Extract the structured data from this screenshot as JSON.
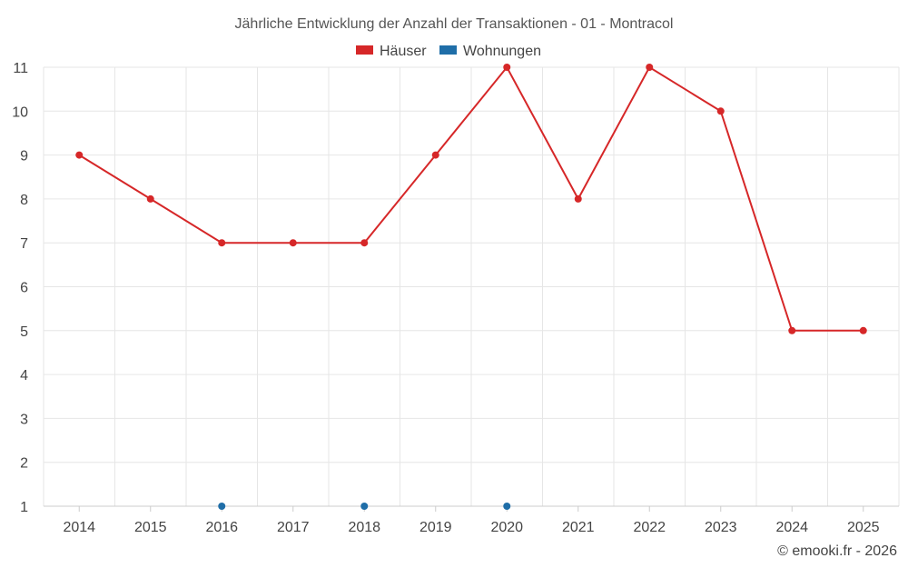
{
  "chart_data": {
    "type": "line",
    "title": "Jährliche Entwicklung der Anzahl der Transaktionen - 01 - Montracol",
    "x": [
      "2014",
      "2015",
      "2016",
      "2017",
      "2018",
      "2019",
      "2020",
      "2021",
      "2022",
      "2023",
      "2024",
      "2025"
    ],
    "ylim": [
      1,
      11
    ],
    "yticks": [
      "1",
      "2",
      "3",
      "4",
      "5",
      "6",
      "7",
      "8",
      "9",
      "10",
      "11"
    ],
    "grid": true,
    "legend_position": "top-center",
    "series": [
      {
        "name": "Häuser",
        "color": "#d62728",
        "values": [
          9,
          8,
          7,
          7,
          7,
          9,
          11,
          8,
          11,
          10,
          5,
          5
        ]
      },
      {
        "name": "Wohnungen",
        "color": "#1f6ea8",
        "values": [
          null,
          null,
          1,
          null,
          1,
          null,
          1,
          null,
          null,
          null,
          null,
          null
        ]
      }
    ]
  },
  "credit": "© emooki.fr - 2026"
}
